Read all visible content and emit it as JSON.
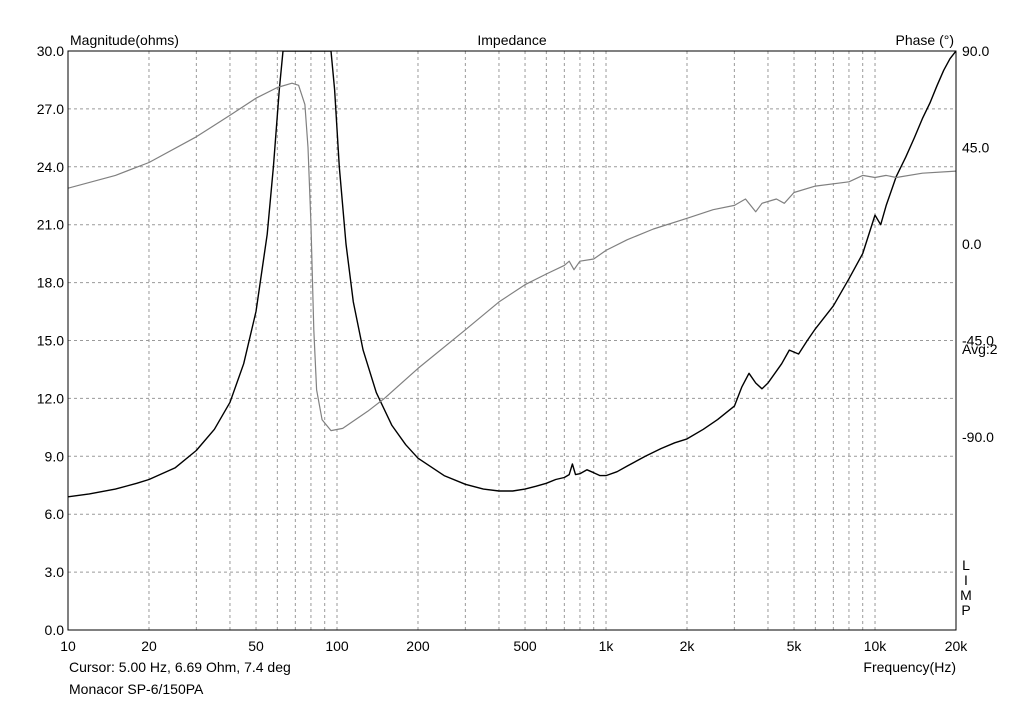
{
  "chart_data": {
    "type": "line",
    "title": "Impedance",
    "left_axis_label": "Magnitude(ohms)",
    "right_axis_label": "Phase (°)",
    "xlabel": "Frequency(Hz)",
    "x_scale": "log",
    "xlim": [
      10,
      20000
    ],
    "ylim_left": [
      0,
      30
    ],
    "ylim_right": [
      -180,
      90
    ],
    "grid": true,
    "x_ticks": [
      {
        "value": 10,
        "label": "10"
      },
      {
        "value": 20,
        "label": "20"
      },
      {
        "value": 50,
        "label": "50"
      },
      {
        "value": 100,
        "label": "100"
      },
      {
        "value": 200,
        "label": "200"
      },
      {
        "value": 500,
        "label": "500"
      },
      {
        "value": 1000,
        "label": "1k"
      },
      {
        "value": 2000,
        "label": "2k"
      },
      {
        "value": 5000,
        "label": "5k"
      },
      {
        "value": 10000,
        "label": "10k"
      },
      {
        "value": 20000,
        "label": "20k"
      }
    ],
    "y_ticks_left": [
      {
        "value": 0,
        "label": "0.0"
      },
      {
        "value": 3,
        "label": "3.0"
      },
      {
        "value": 6,
        "label": "6.0"
      },
      {
        "value": 9,
        "label": "9.0"
      },
      {
        "value": 12,
        "label": "12.0"
      },
      {
        "value": 15,
        "label": "15.0"
      },
      {
        "value": 18,
        "label": "18.0"
      },
      {
        "value": 21,
        "label": "21.0"
      },
      {
        "value": 24,
        "label": "24.0"
      },
      {
        "value": 27,
        "label": "27.0"
      },
      {
        "value": 30,
        "label": "30.0"
      }
    ],
    "y_ticks_right": [
      {
        "value": 90,
        "label": "90.0"
      },
      {
        "value": 45,
        "label": "45.0"
      },
      {
        "value": 0,
        "label": "0.0"
      },
      {
        "value": -45,
        "label": "-45.0"
      },
      {
        "value": -90,
        "label": "-90.0"
      }
    ],
    "series": [
      {
        "axis": "left",
        "color": "#000000",
        "points": [
          [
            10,
            6.9
          ],
          [
            12,
            7.05
          ],
          [
            15,
            7.3
          ],
          [
            18,
            7.6
          ],
          [
            20,
            7.8
          ],
          [
            25,
            8.4
          ],
          [
            30,
            9.3
          ],
          [
            35,
            10.4
          ],
          [
            40,
            11.8
          ],
          [
            45,
            13.8
          ],
          [
            50,
            16.5
          ],
          [
            55,
            20.5
          ],
          [
            58,
            24
          ],
          [
            61,
            28
          ],
          [
            63,
            30
          ],
          [
            95,
            30
          ],
          [
            98,
            28
          ],
          [
            102,
            24
          ],
          [
            108,
            20
          ],
          [
            115,
            17
          ],
          [
            125,
            14.5
          ],
          [
            140,
            12.3
          ],
          [
            160,
            10.6
          ],
          [
            180,
            9.6
          ],
          [
            200,
            8.9
          ],
          [
            250,
            8.0
          ],
          [
            300,
            7.55
          ],
          [
            350,
            7.3
          ],
          [
            400,
            7.2
          ],
          [
            450,
            7.2
          ],
          [
            500,
            7.3
          ],
          [
            550,
            7.45
          ],
          [
            600,
            7.6
          ],
          [
            650,
            7.8
          ],
          [
            700,
            7.9
          ],
          [
            730,
            8.05
          ],
          [
            750,
            8.6
          ],
          [
            770,
            8.05
          ],
          [
            800,
            8.1
          ],
          [
            850,
            8.3
          ],
          [
            900,
            8.15
          ],
          [
            950,
            8.0
          ],
          [
            1000,
            8.0
          ],
          [
            1100,
            8.2
          ],
          [
            1200,
            8.5
          ],
          [
            1400,
            9.0
          ],
          [
            1600,
            9.4
          ],
          [
            1800,
            9.7
          ],
          [
            2000,
            9.9
          ],
          [
            2300,
            10.4
          ],
          [
            2600,
            10.9
          ],
          [
            3000,
            11.6
          ],
          [
            3200,
            12.6
          ],
          [
            3400,
            13.3
          ],
          [
            3600,
            12.8
          ],
          [
            3800,
            12.5
          ],
          [
            4000,
            12.8
          ],
          [
            4500,
            13.8
          ],
          [
            4800,
            14.5
          ],
          [
            5200,
            14.3
          ],
          [
            5600,
            15.0
          ],
          [
            6000,
            15.6
          ],
          [
            7000,
            16.8
          ],
          [
            8000,
            18.2
          ],
          [
            9000,
            19.5
          ],
          [
            10000,
            21.5
          ],
          [
            10500,
            21.0
          ],
          [
            11000,
            22.0
          ],
          [
            12000,
            23.5
          ],
          [
            13000,
            24.5
          ],
          [
            14000,
            25.5
          ],
          [
            15000,
            26.5
          ],
          [
            16000,
            27.3
          ],
          [
            17000,
            28.2
          ],
          [
            18000,
            29.0
          ],
          [
            19000,
            29.6
          ],
          [
            20000,
            30.0
          ]
        ]
      },
      {
        "axis": "right",
        "color": "#808080",
        "points": [
          [
            10,
            26
          ],
          [
            15,
            32
          ],
          [
            20,
            38
          ],
          [
            30,
            50
          ],
          [
            40,
            60
          ],
          [
            50,
            68
          ],
          [
            60,
            73
          ],
          [
            68,
            75
          ],
          [
            72,
            74
          ],
          [
            76,
            65
          ],
          [
            78,
            45
          ],
          [
            80,
            10
          ],
          [
            82,
            -40
          ],
          [
            84,
            -68
          ],
          [
            88,
            -82
          ],
          [
            95,
            -87
          ],
          [
            105,
            -86
          ],
          [
            130,
            -78
          ],
          [
            150,
            -72
          ],
          [
            200,
            -58
          ],
          [
            300,
            -40
          ],
          [
            400,
            -27
          ],
          [
            500,
            -19
          ],
          [
            600,
            -14
          ],
          [
            700,
            -10
          ],
          [
            730,
            -8
          ],
          [
            760,
            -12
          ],
          [
            800,
            -8
          ],
          [
            900,
            -7
          ],
          [
            1000,
            -3
          ],
          [
            1200,
            2
          ],
          [
            1500,
            7
          ],
          [
            2000,
            12
          ],
          [
            2500,
            16
          ],
          [
            3000,
            18
          ],
          [
            3300,
            21
          ],
          [
            3600,
            15
          ],
          [
            3800,
            19
          ],
          [
            4300,
            21
          ],
          [
            4600,
            19
          ],
          [
            5000,
            24
          ],
          [
            6000,
            27
          ],
          [
            8000,
            29
          ],
          [
            9000,
            32
          ],
          [
            10000,
            31
          ],
          [
            11000,
            32
          ],
          [
            12000,
            31
          ],
          [
            15000,
            33
          ],
          [
            20000,
            34
          ]
        ]
      }
    ],
    "annotations": {
      "avg": "Avg:2",
      "limp": [
        "L",
        "I",
        "M",
        "P"
      ]
    }
  },
  "footer": {
    "cursor_text": "Cursor: 5.00 Hz, 6.69 Ohm, 7.4 deg",
    "model_text": "Monacor SP-6/150PA"
  }
}
